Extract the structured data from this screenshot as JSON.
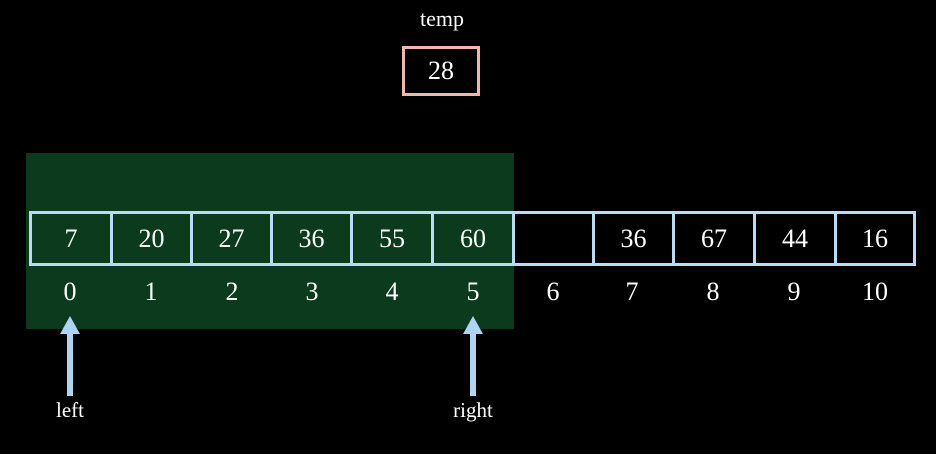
{
  "temp": {
    "label": "temp",
    "value": "28"
  },
  "array": {
    "values": [
      "7",
      "20",
      "27",
      "36",
      "55",
      "60",
      "",
      "36",
      "67",
      "44",
      "16"
    ],
    "indices": [
      "0",
      "1",
      "2",
      "3",
      "4",
      "5",
      "6",
      "7",
      "8",
      "9",
      "10"
    ]
  },
  "highlight_range": {
    "from_index": 0,
    "to_index": 5
  },
  "pointers": {
    "left": {
      "label": "left",
      "index": 0
    },
    "right": {
      "label": "right",
      "index": 5
    }
  },
  "colors": {
    "background": "#000000",
    "highlight": "#0b3a1c",
    "cell_border": "#b8dcf6",
    "temp_border": "#f0b6b0",
    "arrow": "#aed3f5",
    "text": "#ffffff"
  }
}
